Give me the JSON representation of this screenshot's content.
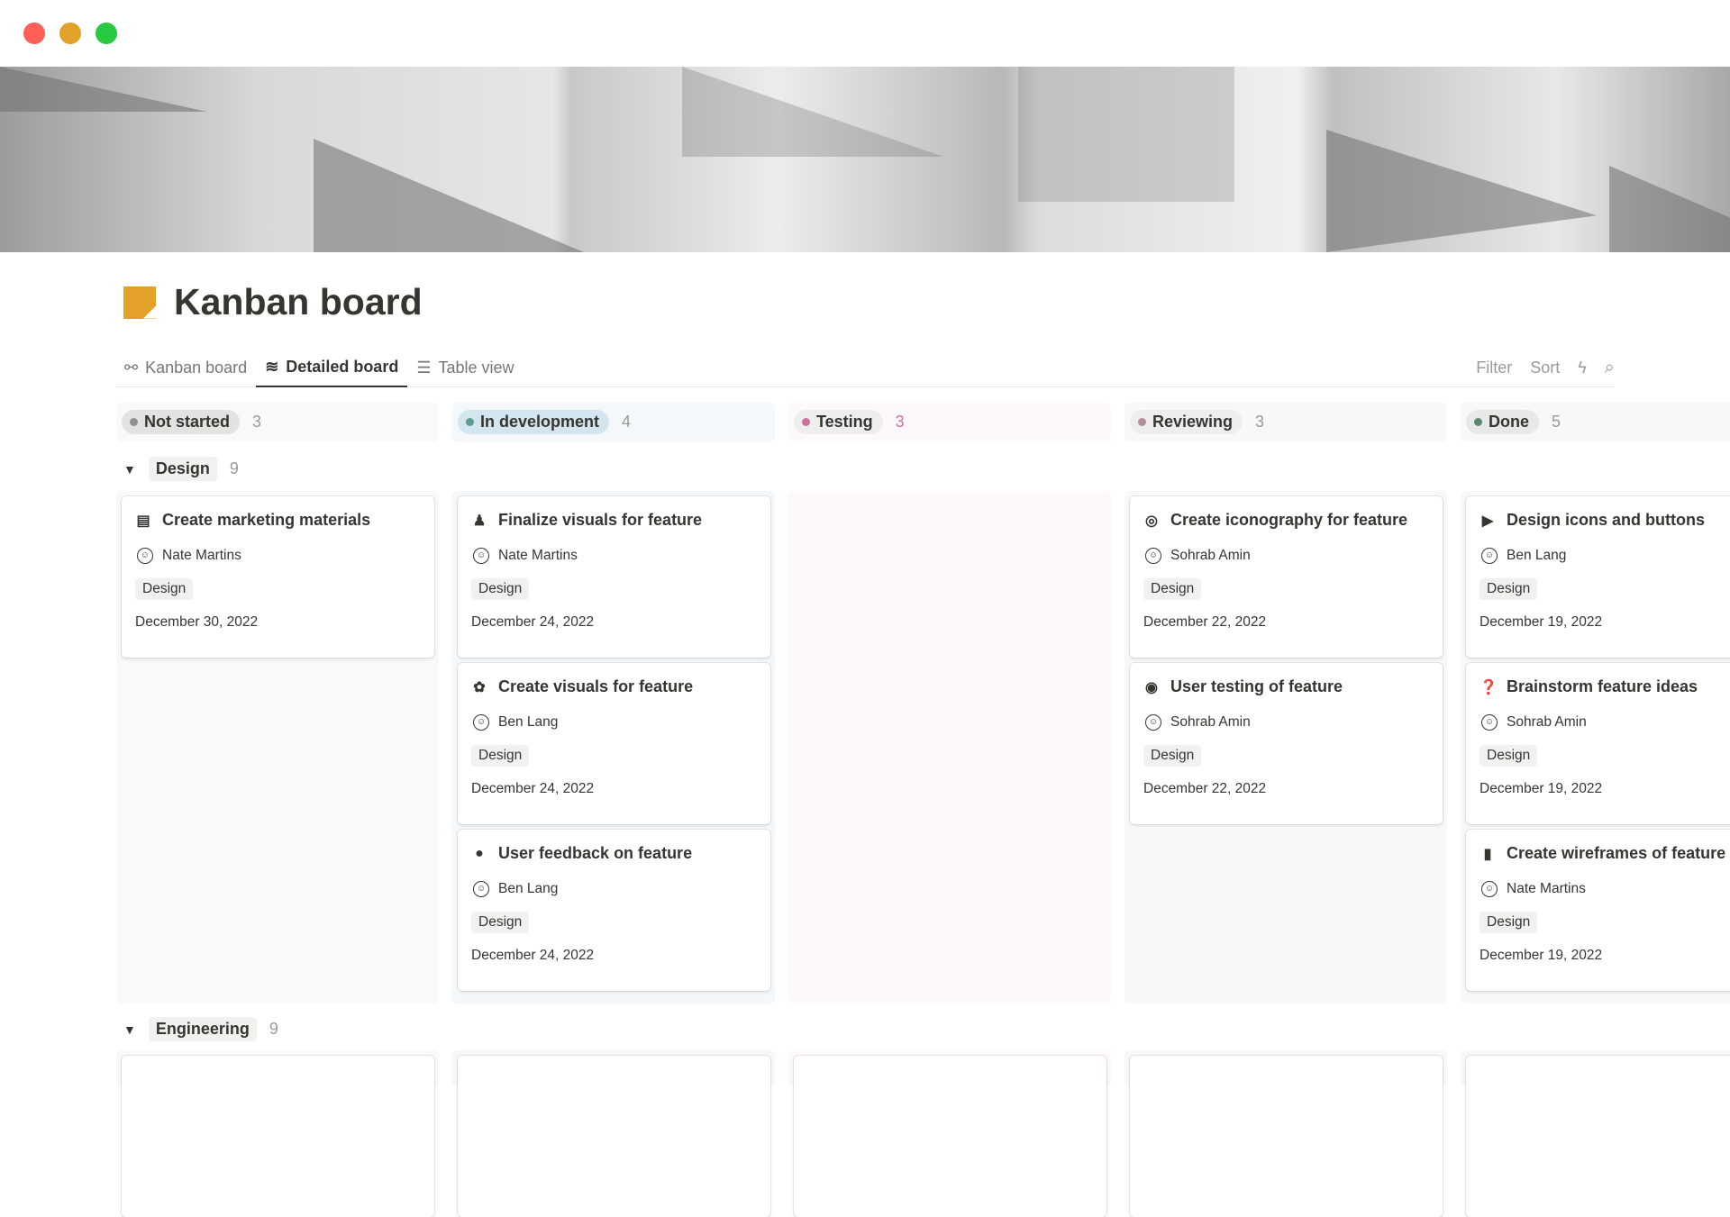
{
  "window": {
    "controls": [
      "close",
      "minimize",
      "maximize"
    ],
    "colors": [
      "#fe5f57",
      "#e2a128",
      "#28c840"
    ]
  },
  "page": {
    "title": "Kanban board",
    "icon": "sticky-note-icon"
  },
  "tabs": [
    {
      "label": "Kanban board",
      "icon": "kanban-icon"
    },
    {
      "label": "Detailed board",
      "icon": "wave-icon",
      "active": true
    },
    {
      "label": "Table view",
      "icon": "list-icon"
    }
  ],
  "actions": {
    "filter": "Filter",
    "sort": "Sort",
    "automation_icon": "lightning-icon",
    "search_icon": "search-icon"
  },
  "columns": [
    {
      "label": "Not started",
      "count": "3",
      "dot": "#91918e",
      "pill": "#e3e2e0",
      "bg": "#f9f9f8"
    },
    {
      "label": "In development",
      "count": "4",
      "dot": "#5a9e8f",
      "pill": "#d3e5ef",
      "bg": "#f4f8fa"
    },
    {
      "label": "Testing",
      "count": "3",
      "dot": "#d1709e",
      "pill": "#eeeeee",
      "bg": "#fcf8fb"
    },
    {
      "label": "Reviewing",
      "count": "3",
      "dot": "#b58c9e",
      "pill": "#eeeeee",
      "bg": "#f9f8f9"
    },
    {
      "label": "Done",
      "count": "5",
      "dot": "#5a8a6e",
      "pill": "#e8e8e6",
      "bg": "#f8f8f7"
    }
  ],
  "groups": [
    {
      "label": "Design",
      "count": "9"
    },
    {
      "label": "Engineering",
      "count": "9"
    }
  ],
  "cards": [
    [
      {
        "title": "Create marketing materials",
        "icon": "▤",
        "person": "Nate Martins",
        "tag": "Design",
        "date": "December 30, 2022"
      }
    ],
    [
      {
        "title": "Finalize visuals for feature",
        "icon": "♟",
        "person": "Nate Martins",
        "tag": "Design",
        "date": "December 24, 2022"
      },
      {
        "title": "Create visuals for feature",
        "icon": "✿",
        "person": "Ben Lang",
        "tag": "Design",
        "date": "December 24, 2022"
      },
      {
        "title": "User feedback on feature",
        "icon": "●",
        "person": "Ben Lang",
        "tag": "Design",
        "date": "December 24, 2022"
      }
    ],
    [],
    [
      {
        "title": "Create iconography for feature",
        "icon": "◎",
        "person": "Sohrab Amin",
        "tag": "Design",
        "date": "December 22, 2022"
      },
      {
        "title": "User testing of feature",
        "icon": "◉",
        "person": "Sohrab Amin",
        "tag": "Design",
        "date": "December 22, 2022"
      }
    ],
    [
      {
        "title": "Design icons and buttons",
        "icon": "▶",
        "person": "Ben Lang",
        "tag": "Design",
        "date": "December 19, 2022"
      },
      {
        "title": "Brainstorm feature ideas",
        "icon": "❓",
        "person": "Sohrab Amin",
        "tag": "Design",
        "date": "December 19, 2022"
      },
      {
        "title": "Create wireframes of feature",
        "icon": "▮",
        "person": "Nate Martins",
        "tag": "Design",
        "date": "December 19, 2022"
      }
    ]
  ]
}
